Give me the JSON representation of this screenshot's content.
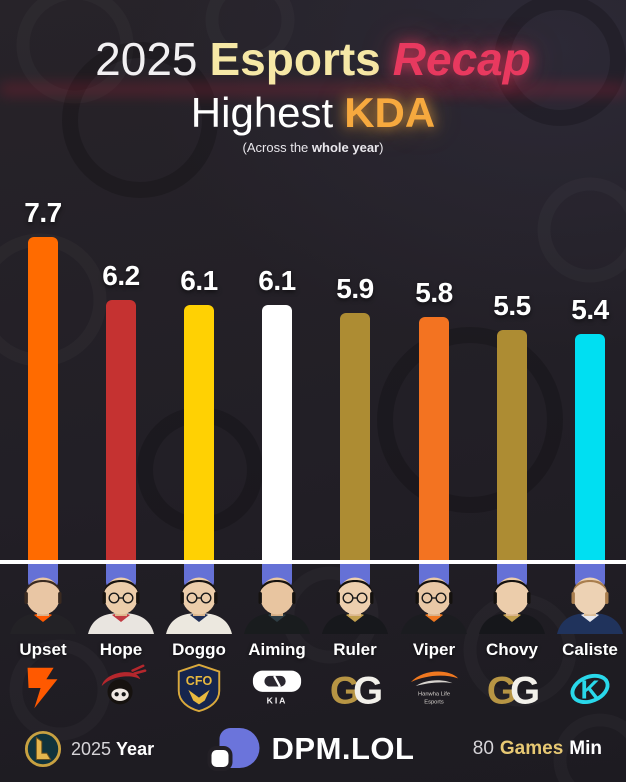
{
  "header": {
    "year": "2025",
    "title_main": "Esports",
    "title_accent": "Recap",
    "subtitle_prefix": "Highest",
    "subtitle_stat": "KDA",
    "note_prefix": "(Across the",
    "note_bold": "whole year",
    "note_suffix": ")"
  },
  "chart_data": {
    "type": "bar",
    "title": "Highest KDA",
    "subtitle": "2025 Esports Recap",
    "note": "(Across the whole year)",
    "ylabel": "KDA",
    "ylim": [
      0,
      8
    ],
    "grid": false,
    "legend": "none",
    "value_labels": "above bars",
    "categories": [
      "Upset",
      "Hope",
      "Doggo",
      "Aiming",
      "Ruler",
      "Viper",
      "Chovy",
      "Caliste"
    ],
    "values": [
      7.7,
      6.2,
      6.1,
      6.1,
      5.9,
      5.8,
      5.5,
      5.4
    ],
    "players": [
      {
        "name": "Upset",
        "kda": 7.7,
        "bar_color": "#ff6b00",
        "team_logo": "fnatic-logo",
        "avatar": {
          "hair": "#3a2a20",
          "skin": "#e9c6a4",
          "skin2": "#d8b08c",
          "jersey": "#232226",
          "accent": "#ff5900",
          "glasses": false
        }
      },
      {
        "name": "Hope",
        "kda": 6.2,
        "bar_color": "#c53231",
        "team_logo": "ninjas-in-pyjamas-logo",
        "avatar": {
          "hair": "#17130f",
          "skin": "#eccdaa",
          "skin2": "#dcb78e",
          "jersey": "#e9e5e0",
          "accent": "#c23a42",
          "glasses": true
        }
      },
      {
        "name": "Doggo",
        "kda": 6.1,
        "bar_color": "#ffd103",
        "team_logo": "cfo-logo",
        "logo_text": "CFO",
        "avatar": {
          "hair": "#171310",
          "skin": "#eccdaa",
          "skin2": "#dcb78e",
          "jersey": "#ece8df",
          "accent": "#223057",
          "glasses": true
        }
      },
      {
        "name": "Aiming",
        "kda": 6.1,
        "bar_color": "#ffffff",
        "team_logo": "kia-logo",
        "logo_text": "KIA",
        "avatar": {
          "hair": "#15120f",
          "skin": "#e8c5a0",
          "skin2": "#d6ae85",
          "jersey": "#191c1e",
          "accent": "#2e3d44",
          "glasses": false
        }
      },
      {
        "name": "Ruler",
        "kda": 5.9,
        "bar_color": "#ad8c33",
        "team_logo": "geng-logo",
        "avatar": {
          "hair": "#14110e",
          "skin": "#edcfae",
          "skin2": "#dcb88f",
          "jersey": "#17181c",
          "accent": "#c3a04e",
          "glasses": true
        }
      },
      {
        "name": "Viper",
        "kda": 5.8,
        "bar_color": "#f37321",
        "team_logo": "hanwha-life-esports-logo",
        "logo_text_line1": "Hanwha Life",
        "logo_text_line2": "Esports",
        "avatar": {
          "hair": "#14110e",
          "skin": "#e9c8a6",
          "skin2": "#d8b189",
          "jersey": "#1b1c20",
          "accent": "#f07820",
          "glasses": true
        }
      },
      {
        "name": "Chovy",
        "kda": 5.5,
        "bar_color": "#ad8c33",
        "team_logo": "geng-logo",
        "avatar": {
          "hair": "#14110e",
          "skin": "#eccdab",
          "skin2": "#dab48b",
          "jersey": "#16171b",
          "accent": "#c3a04e",
          "glasses": false
        }
      },
      {
        "name": "Caliste",
        "kda": 5.4,
        "bar_color": "#00dff2",
        "team_logo": "karmine-corp-logo",
        "avatar": {
          "hair": "#a97e4e",
          "skin": "#edd2b4",
          "skin2": "#dcbd97",
          "jersey": "#20335c",
          "accent": "#e8e8ee",
          "glasses": false
        }
      }
    ]
  },
  "footer": {
    "lol_year": "2025",
    "lol_year_label": "Year",
    "brand_name": "DPM.LOL",
    "games_value": "80",
    "games_label": "Games",
    "games_unit": "Min"
  },
  "colors": {
    "background": "#232127",
    "baseline_white": "#ffffff",
    "stub_blue": "#6571d6",
    "title_cream": "#f6e8a6",
    "title_pink": "#e8395f",
    "stat_orange": "#f6a93e",
    "footer_gold": "#e7c873",
    "dpm_purple": "#6b74db",
    "lol_gold": "#c8a141"
  }
}
